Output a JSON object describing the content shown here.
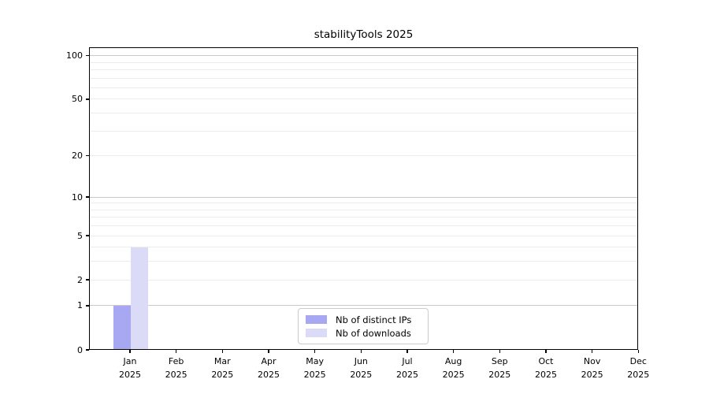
{
  "chart_data": {
    "type": "bar",
    "title": "stabilityTools 2025",
    "categories": [
      "Jan",
      "Feb",
      "Mar",
      "Apr",
      "May",
      "Jun",
      "Jul",
      "Aug",
      "Sep",
      "Oct",
      "Nov",
      "Dec"
    ],
    "x_tick_year": "2025",
    "series": [
      {
        "name": "Nb of distinct IPs",
        "color": "#a8a8f2",
        "values": [
          1,
          0,
          0,
          0,
          0,
          0,
          0,
          0,
          0,
          0,
          0,
          0
        ]
      },
      {
        "name": "Nb of downloads",
        "color": "#dbdbf8",
        "values": [
          4,
          0,
          0,
          0,
          0,
          0,
          0,
          0,
          0,
          0,
          0,
          0
        ]
      }
    ],
    "y_scale": "log1p",
    "ylim": [
      0,
      100
    ],
    "y_ticks": [
      0,
      1,
      2,
      5,
      10,
      20,
      50,
      100
    ],
    "gridlines_major": [
      1,
      10,
      100
    ],
    "gridlines_minor": [
      2,
      3,
      4,
      5,
      6,
      7,
      8,
      9,
      20,
      30,
      40,
      50,
      60,
      70,
      80,
      90
    ],
    "grid": "on",
    "legend_position": "lower center",
    "axis_color": "#000000",
    "gridline_major_color": "#c8c8c8",
    "gridline_minor_color": "#ececec"
  }
}
